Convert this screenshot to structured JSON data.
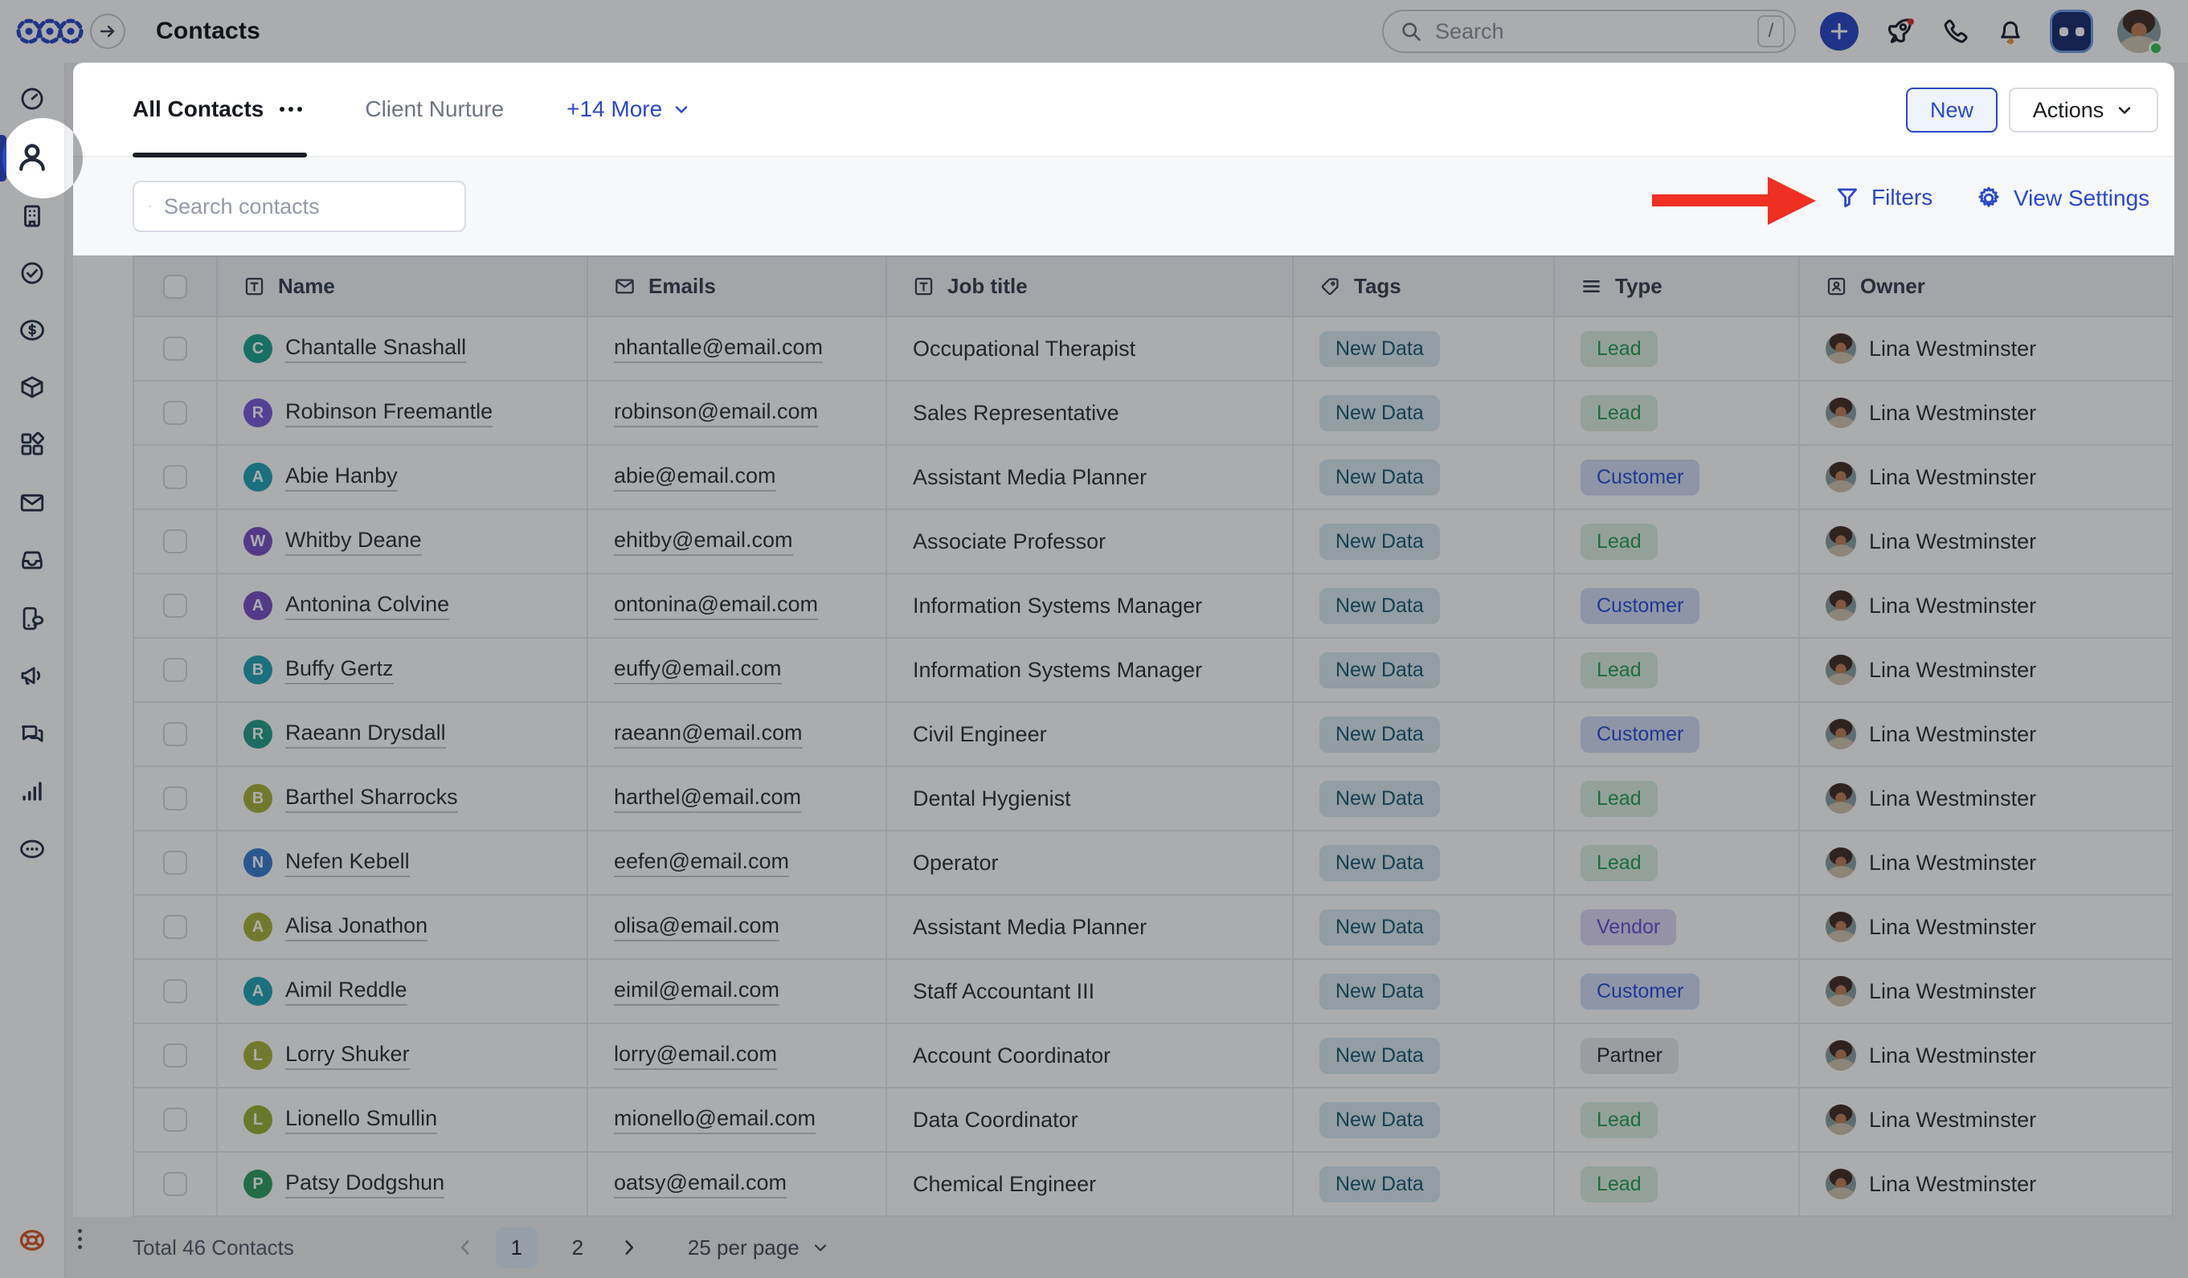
{
  "topbar": {
    "title": "Contacts",
    "search_placeholder": "Search",
    "search_shortcut": "/"
  },
  "tabs": {
    "all": "All Contacts",
    "client_nurture": "Client Nurture",
    "more": "+14 More"
  },
  "header_actions": {
    "new": "New",
    "actions": "Actions"
  },
  "toolbar": {
    "search_placeholder": "Search contacts",
    "filters": "Filters",
    "view_settings": "View Settings"
  },
  "table": {
    "headers": {
      "name": "Name",
      "emails": "Emails",
      "job_title": "Job title",
      "tags": "Tags",
      "type": "Type",
      "owner": "Owner"
    },
    "rows": [
      {
        "name": "Chantalle Snashall",
        "initial": "C",
        "avatar_color": "#1fa58f",
        "email": "nhantalle@email.com",
        "job": "Occupational Therapist",
        "tag": "New Data",
        "type": "Lead",
        "owner": "Lina Westminster"
      },
      {
        "name": "Robinson Freemantle",
        "initial": "R",
        "avatar_color": "#7c5cdb",
        "email": "robinson@email.com",
        "job": "Sales Representative",
        "tag": "New Data",
        "type": "Lead",
        "owner": "Lina Westminster"
      },
      {
        "name": "Abie Hanby",
        "initial": "A",
        "avatar_color": "#25a4b8",
        "email": "abie@email.com",
        "job": "Assistant Media Planner",
        "tag": "New Data",
        "type": "Customer",
        "owner": "Lina Westminster"
      },
      {
        "name": "Whitby Deane",
        "initial": "W",
        "avatar_color": "#7a52c7",
        "email": "ehitby@email.com",
        "job": "Associate Professor",
        "tag": "New Data",
        "type": "Lead",
        "owner": "Lina Westminster"
      },
      {
        "name": "Antonina Colvine",
        "initial": "A",
        "avatar_color": "#7a52c7",
        "email": "ontonina@email.com",
        "job": "Information Systems Manager",
        "tag": "New Data",
        "type": "Customer",
        "owner": "Lina Westminster"
      },
      {
        "name": "Buffy Gertz",
        "initial": "B",
        "avatar_color": "#25a4b8",
        "email": "euffy@email.com",
        "job": "Information Systems Manager",
        "tag": "New Data",
        "type": "Lead",
        "owner": "Lina Westminster"
      },
      {
        "name": "Raeann Drysdall",
        "initial": "R",
        "avatar_color": "#27a08b",
        "email": "raeann@email.com",
        "job": "Civil Engineer",
        "tag": "New Data",
        "type": "Customer",
        "owner": "Lina Westminster"
      },
      {
        "name": "Barthel Sharrocks",
        "initial": "B",
        "avatar_color": "#a8b33c",
        "email": "harthel@email.com",
        "job": "Dental Hygienist",
        "tag": "New Data",
        "type": "Lead",
        "owner": "Lina Westminster"
      },
      {
        "name": "Nefen Kebell",
        "initial": "N",
        "avatar_color": "#3b7fd4",
        "email": "eefen@email.com",
        "job": "Operator",
        "tag": "New Data",
        "type": "Lead",
        "owner": "Lina Westminster"
      },
      {
        "name": "Alisa Jonathon",
        "initial": "A",
        "avatar_color": "#a8b33c",
        "email": "olisa@email.com",
        "job": "Assistant Media Planner",
        "tag": "New Data",
        "type": "Vendor",
        "owner": "Lina Westminster"
      },
      {
        "name": "Aimil Reddle",
        "initial": "A",
        "avatar_color": "#25a4b8",
        "email": "eimil@email.com",
        "job": "Staff Accountant III",
        "tag": "New Data",
        "type": "Customer",
        "owner": "Lina Westminster"
      },
      {
        "name": "Lorry Shuker",
        "initial": "L",
        "avatar_color": "#a8b33c",
        "email": "lorry@email.com",
        "job": "Account Coordinator",
        "tag": "New Data",
        "type": "Partner",
        "owner": "Lina Westminster"
      },
      {
        "name": "Lionello Smullin",
        "initial": "L",
        "avatar_color": "#9cb23a",
        "email": "mionello@email.com",
        "job": "Data Coordinator",
        "tag": "New Data",
        "type": "Lead",
        "owner": "Lina Westminster"
      },
      {
        "name": "Patsy Dodgshun",
        "initial": "P",
        "avatar_color": "#2f9e63",
        "email": "oatsy@email.com",
        "job": "Chemical Engineer",
        "tag": "New Data",
        "type": "Lead",
        "owner": "Lina Westminster"
      }
    ]
  },
  "tag_style": {
    "fg": "#1f5a75",
    "bg": "#d9e8f2"
  },
  "type_styles": {
    "lead": {
      "fg": "#279e58",
      "bg": "#dcefe2"
    },
    "customer": {
      "fg": "#2b50d8",
      "bg": "#d4ddf6"
    },
    "vendor": {
      "fg": "#6a4fd0",
      "bg": "#ded7f5"
    },
    "partner": {
      "fg": "#282c33",
      "bg": "#e8e9ec"
    }
  },
  "footer": {
    "total": "Total 46 Contacts",
    "page_1": "1",
    "page_2": "2",
    "per_page": "25 per page"
  },
  "sidebar": {
    "items": [
      "dashboard",
      "contacts",
      "companies",
      "tasks",
      "pipelines",
      "products",
      "apps",
      "email",
      "inbox",
      "calls",
      "marketing",
      "chat",
      "reports",
      "more",
      "help"
    ],
    "active_item": "contacts"
  },
  "colors": {
    "accent": "#2b49c8",
    "arrow_red": "#ee2f22",
    "help_orange": "#d75b35",
    "status_green": "#36c24c"
  }
}
